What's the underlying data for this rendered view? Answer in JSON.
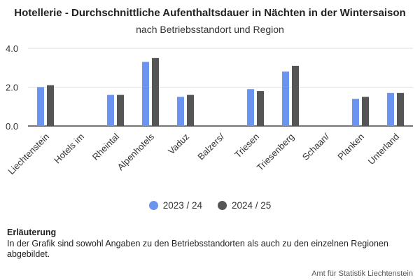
{
  "colors": {
    "series_2023": "#6b93f0",
    "series_2024": "#555555",
    "grid": "#dddddd",
    "axis": "#222222"
  },
  "chart_data": {
    "type": "bar",
    "title": "Hotellerie - Durchschnittliche Aufenthaltsdauer in Nächten in der Wintersaison",
    "subtitle": "nach Betriebsstandort und Region",
    "categories": [
      "Liechtenstein",
      "Hotels im",
      "Rheintal",
      "Alpenhotels",
      "Vaduz",
      "Balzers/",
      "Triesen",
      "Triesenberg",
      "Schaan/",
      "Planken",
      "Unterland"
    ],
    "series": [
      {
        "name": "2023 / 24",
        "values": [
          2.0,
          null,
          1.6,
          3.3,
          1.5,
          null,
          1.9,
          2.8,
          null,
          1.4,
          1.7
        ]
      },
      {
        "name": "2024 / 25",
        "values": [
          2.1,
          null,
          1.6,
          3.5,
          1.6,
          null,
          1.8,
          3.1,
          null,
          1.5,
          1.7
        ]
      }
    ],
    "y_ticks": [
      "0.0",
      "2.0",
      "4.0"
    ],
    "ylim": [
      0,
      4
    ],
    "grid": true,
    "legend_position": "bottom-center"
  },
  "note": {
    "heading": "Erläuterung",
    "text": "In der Grafik sind sowohl Angaben zu den Betriebsstandorten als auch zu den einzelnen Regionen abgebildet."
  },
  "source": "Amt für Statistik Liechtenstein"
}
